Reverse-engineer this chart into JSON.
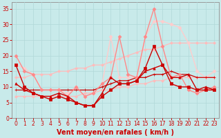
{
  "x": [
    0,
    1,
    2,
    3,
    4,
    5,
    6,
    7,
    8,
    9,
    10,
    11,
    12,
    13,
    14,
    15,
    16,
    17,
    18,
    19,
    20,
    21,
    22,
    23
  ],
  "series": [
    {
      "y": [
        17,
        10,
        8,
        7,
        6,
        7,
        6,
        5,
        4,
        4,
        7,
        9,
        11,
        11,
        12,
        16,
        23,
        17,
        11,
        10,
        10,
        9,
        9,
        9
      ],
      "color": "#cc0000",
      "marker": "s",
      "markersize": 2.5,
      "linewidth": 1.0,
      "zorder": 6
    },
    {
      "y": [
        11,
        9,
        8,
        7,
        7,
        8,
        7,
        5,
        4,
        4,
        8,
        13,
        11,
        11,
        12,
        15,
        16,
        17,
        13,
        13,
        14,
        9,
        10,
        9
      ],
      "color": "#cc0000",
      "marker": "^",
      "markersize": 2.5,
      "linewidth": 1.0,
      "zorder": 6
    },
    {
      "y": [
        9,
        9,
        9,
        9,
        9,
        9,
        9,
        9,
        9,
        9,
        10,
        11,
        12,
        12,
        13,
        13,
        14,
        14,
        15,
        14,
        14,
        13,
        13,
        13
      ],
      "color": "#cc0000",
      "marker": "+",
      "markersize": 3,
      "linewidth": 0.9,
      "zorder": 4
    },
    {
      "y": [
        7,
        7,
        7,
        7,
        7,
        7,
        7,
        7,
        8,
        8,
        9,
        9,
        10,
        10,
        11,
        11,
        12,
        12,
        13,
        13,
        13,
        13,
        13,
        13
      ],
      "color": "#ffbbbb",
      "marker": "D",
      "markersize": 2,
      "linewidth": 0.9,
      "zorder": 3
    },
    {
      "y": [
        13,
        13,
        14,
        14,
        14,
        15,
        15,
        16,
        16,
        17,
        17,
        18,
        19,
        20,
        21,
        22,
        22,
        23,
        24,
        24,
        24,
        24,
        24,
        24
      ],
      "color": "#ffbbbb",
      "marker": "D",
      "markersize": 2,
      "linewidth": 0.9,
      "zorder": 3
    },
    {
      "y": [
        20,
        15,
        14,
        9,
        9,
        9,
        7,
        10,
        7,
        8,
        11,
        13,
        26,
        14,
        13,
        26,
        35,
        23,
        13,
        14,
        9,
        8,
        9,
        10
      ],
      "color": "#ff8888",
      "marker": "D",
      "markersize": 2.5,
      "linewidth": 1.0,
      "zorder": 4
    },
    {
      "y": [
        17,
        16,
        14,
        9,
        9,
        9,
        8,
        10,
        7,
        8,
        11,
        26,
        13,
        13,
        13,
        26,
        31,
        31,
        30,
        29,
        24,
        15,
        13,
        15
      ],
      "color": "#ffcccc",
      "marker": "D",
      "markersize": 2.5,
      "linewidth": 1.0,
      "zorder": 3
    }
  ],
  "xlim": [
    -0.5,
    23.5
  ],
  "ylim": [
    0,
    37
  ],
  "yticks": [
    0,
    5,
    10,
    15,
    20,
    25,
    30,
    35
  ],
  "xticks": [
    0,
    1,
    2,
    3,
    4,
    5,
    6,
    7,
    8,
    9,
    10,
    11,
    12,
    13,
    14,
    15,
    16,
    17,
    18,
    19,
    20,
    21,
    22,
    23
  ],
  "xlabel": "Vent moyen/en rafales ( km/h )",
  "xlabel_color": "#cc0000",
  "xlabel_fontsize": 7,
  "tick_color": "#cc0000",
  "tick_fontsize": 5.5,
  "grid_color": "#b0d8d8",
  "bg_color": "#c8eaea",
  "axis_color": "#999999"
}
